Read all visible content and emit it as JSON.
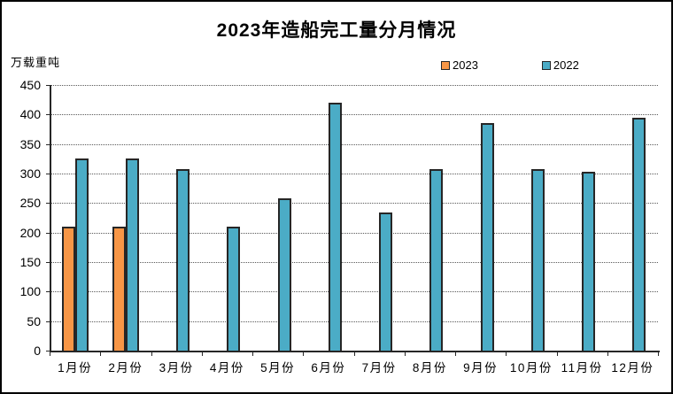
{
  "title": "2023年造船完工量分月情况",
  "unit_label": "万载重吨",
  "legend": [
    {
      "label": "2023",
      "color": "#F79646"
    },
    {
      "label": "2022",
      "color": "#4BACC6"
    }
  ],
  "chart_data": {
    "type": "bar",
    "title": "2023年造船完工量分月情况",
    "xlabel": "",
    "ylabel": "万载重吨",
    "categories": [
      "1月份",
      "2月份",
      "3月份",
      "4月份",
      "5月份",
      "6月份",
      "7月份",
      "8月份",
      "9月份",
      "10月份",
      "11月份",
      "12月份"
    ],
    "series": [
      {
        "name": "2023",
        "color": "#F79646",
        "values": [
          210,
          210,
          null,
          null,
          null,
          null,
          null,
          null,
          null,
          null,
          null,
          null
        ]
      },
      {
        "name": "2022",
        "color": "#4BACC6",
        "values": [
          326,
          326,
          307,
          210,
          258,
          420,
          234,
          308,
          385,
          307,
          303,
          394
        ]
      }
    ],
    "ylim": [
      0,
      450
    ],
    "y_tick_step": 50,
    "grid": "horizontal-dotted",
    "legend_position": "top-right",
    "bar_border_color": "#262626",
    "gridline_color": "#595959"
  }
}
